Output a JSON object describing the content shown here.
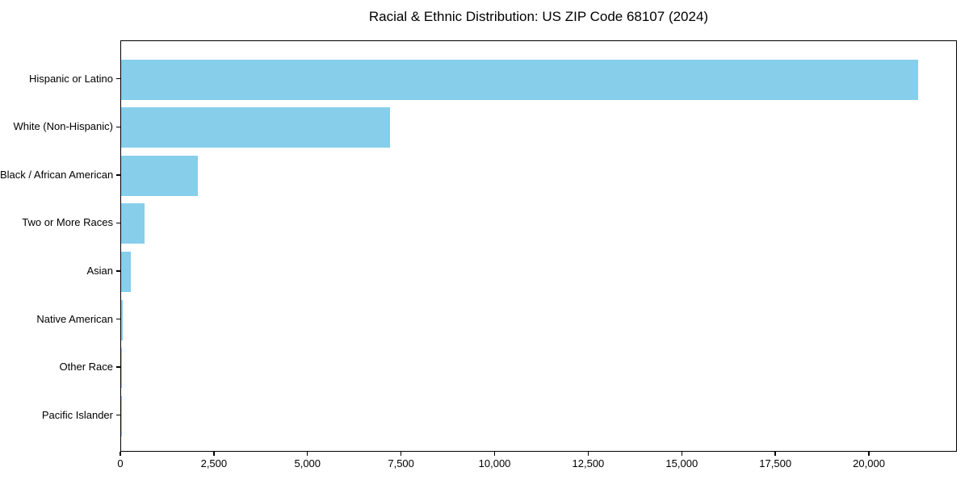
{
  "title": "Racial & Ethnic Distribution: US ZIP Code 68107 (2024)",
  "colors": {
    "bar": "#87CEEB",
    "spine": "#000000",
    "background": "#ffffff",
    "text": "#000000"
  },
  "chart_data": {
    "type": "bar",
    "orientation": "horizontal",
    "title": "Racial & Ethnic Distribution: US ZIP Code 68107 (2024)",
    "xlabel": "",
    "ylabel": "",
    "categories": [
      "Hispanic or Latino",
      "White (Non-Hispanic)",
      "Black / African American",
      "Two or More Races",
      "Asian",
      "Native American",
      "Other Race",
      "Pacific Islander"
    ],
    "values": [
      21300,
      7190,
      2050,
      630,
      260,
      40,
      15,
      5
    ],
    "bar_color": "#87CEEB",
    "xlim": [
      0,
      22350
    ],
    "grid": false,
    "legend": "none",
    "xticks": {
      "values": [
        0,
        2500,
        5000,
        7500,
        10000,
        12500,
        15000,
        17500,
        20000
      ],
      "labels": [
        "0",
        "2,500",
        "5,000",
        "7,500",
        "10,000",
        "12,500",
        "15,000",
        "17,500",
        "20,000"
      ]
    }
  }
}
